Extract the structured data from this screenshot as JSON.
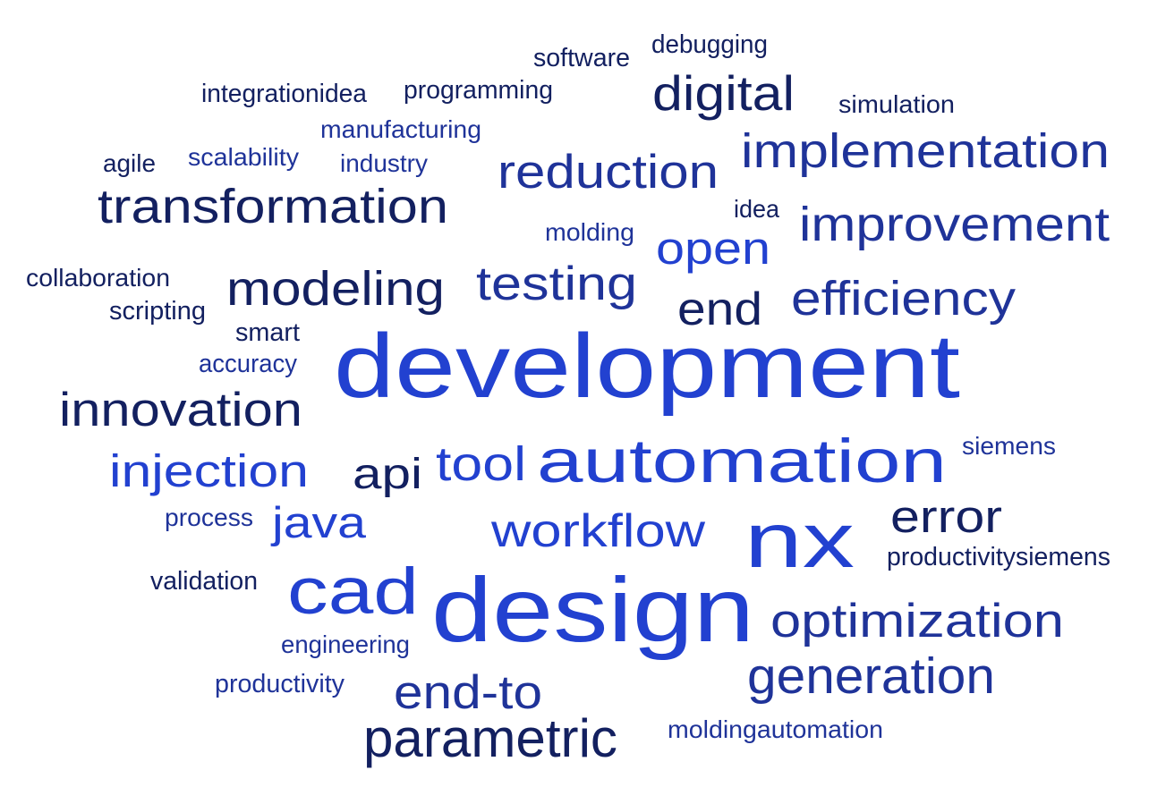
{
  "colors": {
    "navy": "#132060",
    "mid": "#1F3399",
    "bright": "#2241D0"
  },
  "words": [
    {
      "text": "debugging",
      "color": "navy"
    },
    {
      "text": "software",
      "color": "navy"
    },
    {
      "text": "integrationidea",
      "color": "navy"
    },
    {
      "text": "programming",
      "color": "navy"
    },
    {
      "text": "digital",
      "color": "navy"
    },
    {
      "text": "simulation",
      "color": "navy"
    },
    {
      "text": "manufacturing",
      "color": "mid"
    },
    {
      "text": "implementation",
      "color": "mid"
    },
    {
      "text": "agile",
      "color": "navy"
    },
    {
      "text": "scalability",
      "color": "mid"
    },
    {
      "text": "industry",
      "color": "mid"
    },
    {
      "text": "reduction",
      "color": "mid"
    },
    {
      "text": "transformation",
      "color": "navy"
    },
    {
      "text": "idea",
      "color": "navy"
    },
    {
      "text": "improvement",
      "color": "mid"
    },
    {
      "text": "molding",
      "color": "mid"
    },
    {
      "text": "open",
      "color": "bright"
    },
    {
      "text": "collaboration",
      "color": "navy"
    },
    {
      "text": "modeling",
      "color": "navy"
    },
    {
      "text": "testing",
      "color": "mid"
    },
    {
      "text": "efficiency",
      "color": "mid"
    },
    {
      "text": "end",
      "color": "navy"
    },
    {
      "text": "scripting",
      "color": "navy"
    },
    {
      "text": "smart",
      "color": "navy"
    },
    {
      "text": "development",
      "color": "bright"
    },
    {
      "text": "accuracy",
      "color": "mid"
    },
    {
      "text": "innovation",
      "color": "navy"
    },
    {
      "text": "siemens",
      "color": "mid"
    },
    {
      "text": "automation",
      "color": "bright"
    },
    {
      "text": "injection",
      "color": "bright"
    },
    {
      "text": "api",
      "color": "navy"
    },
    {
      "text": "tool",
      "color": "bright"
    },
    {
      "text": "process",
      "color": "mid"
    },
    {
      "text": "java",
      "color": "bright"
    },
    {
      "text": "workflow",
      "color": "bright"
    },
    {
      "text": "error",
      "color": "navy"
    },
    {
      "text": "nx",
      "color": "bright"
    },
    {
      "text": "productivitysiemens",
      "color": "navy"
    },
    {
      "text": "validation",
      "color": "navy"
    },
    {
      "text": "cad",
      "color": "bright"
    },
    {
      "text": "design",
      "color": "bright"
    },
    {
      "text": "optimization",
      "color": "mid"
    },
    {
      "text": "engineering",
      "color": "mid"
    },
    {
      "text": "generation",
      "color": "mid"
    },
    {
      "text": "productivity",
      "color": "mid"
    },
    {
      "text": "end-to",
      "color": "mid"
    },
    {
      "text": "parametric",
      "color": "navy"
    },
    {
      "text": "moldingautomation",
      "color": "mid"
    }
  ]
}
